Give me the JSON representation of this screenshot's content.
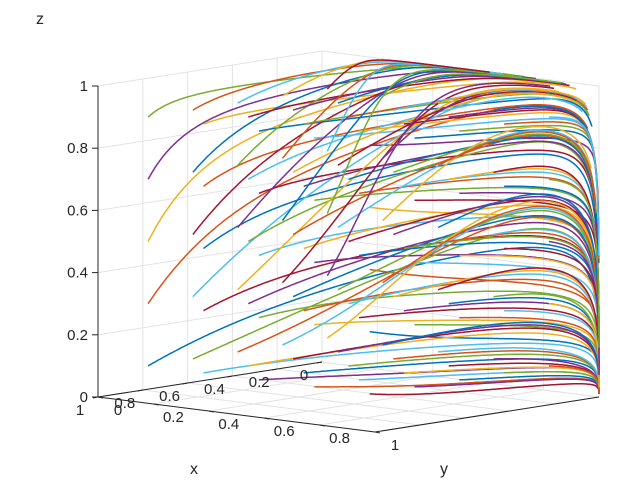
{
  "chart_data": {
    "type": "line",
    "projection": "3d",
    "title": "",
    "xlabel": "x",
    "ylabel": "y",
    "zlabel": "z",
    "xlim": [
      0,
      1
    ],
    "ylim": [
      0,
      1
    ],
    "zlim": [
      0,
      1
    ],
    "x_ticks": [
      "0",
      "0.2",
      "0.4",
      "0.6",
      "0.8",
      "1"
    ],
    "y_ticks": [
      "0",
      "0.2",
      "0.4",
      "0.6",
      "0.8",
      "1"
    ],
    "z_ticks": [
      "0",
      "0.2",
      "0.4",
      "0.6",
      "0.8",
      "1"
    ],
    "grid": true,
    "box": "open",
    "series_note": "",
    "initial_x": [
      0.1,
      0.3,
      0.5,
      0.7,
      0.9
    ],
    "initial_y": [
      0.1,
      0.3,
      0.5,
      0.7,
      0.9
    ],
    "initial_z": [
      0.1,
      0.3,
      0.5,
      0.7,
      0.9
    ],
    "end_point": [
      0,
      1,
      0
    ],
    "colors": [
      "#0072BD",
      "#D95319",
      "#EDB120",
      "#7E2F8E",
      "#77AC30",
      "#4DBEEE",
      "#A2142F"
    ]
  }
}
